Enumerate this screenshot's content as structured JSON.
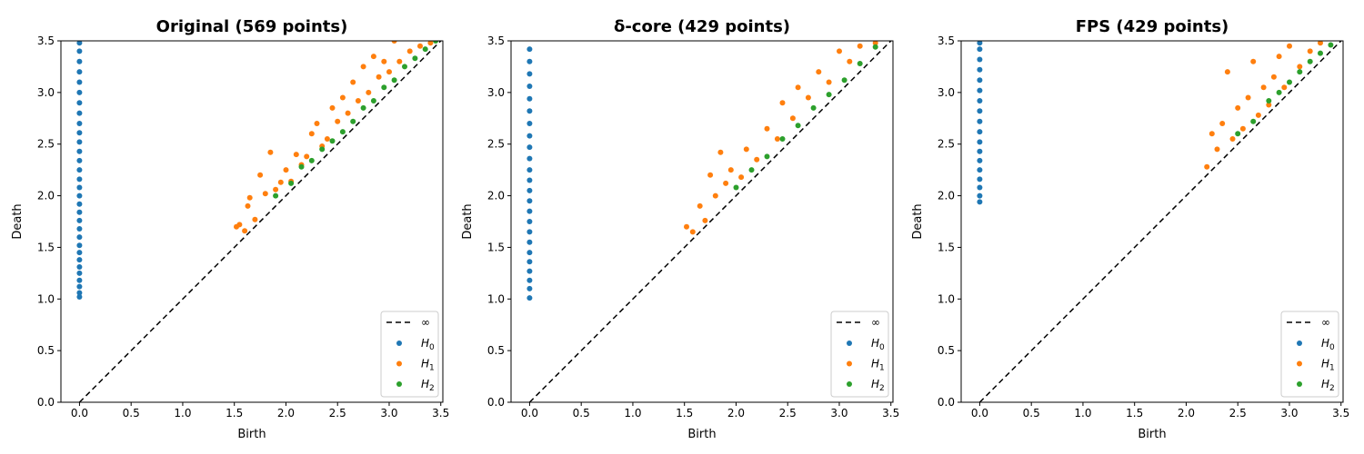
{
  "chart_data": [
    {
      "type": "scatter",
      "title": "Original (569 points)",
      "xlabel": "Birth",
      "ylabel": "Death",
      "xlim": [
        -0.18,
        3.52
      ],
      "ylim": [
        0.0,
        3.5
      ],
      "xticks": [
        0.0,
        0.5,
        1.0,
        1.5,
        2.0,
        2.5,
        3.0,
        3.5
      ],
      "yticks": [
        0.0,
        0.5,
        1.0,
        1.5,
        2.0,
        2.5,
        3.0,
        3.5
      ],
      "tick_labels": [
        "0.0",
        "0.5",
        "1.0",
        "1.5",
        "2.0",
        "2.5",
        "3.0",
        "3.5"
      ],
      "diagonal_label": "∞",
      "legend_position": "lower-right",
      "series": [
        {
          "name": "H0",
          "sub": "0",
          "color": "#1f77b4",
          "points": [
            [
              0,
              1.02
            ],
            [
              0,
              1.06
            ],
            [
              0,
              1.12
            ],
            [
              0,
              1.18
            ],
            [
              0,
              1.25
            ],
            [
              0,
              1.31
            ],
            [
              0,
              1.38
            ],
            [
              0,
              1.45
            ],
            [
              0,
              1.52
            ],
            [
              0,
              1.6
            ],
            [
              0,
              1.68
            ],
            [
              0,
              1.76
            ],
            [
              0,
              1.84
            ],
            [
              0,
              1.92
            ],
            [
              0,
              2.0
            ],
            [
              0,
              2.08
            ],
            [
              0,
              2.16
            ],
            [
              0,
              2.25
            ],
            [
              0,
              2.34
            ],
            [
              0,
              2.43
            ],
            [
              0,
              2.52
            ],
            [
              0,
              2.61
            ],
            [
              0,
              2.7
            ],
            [
              0,
              2.8
            ],
            [
              0,
              2.9
            ],
            [
              0,
              3.0
            ],
            [
              0,
              3.1
            ],
            [
              0,
              3.2
            ],
            [
              0,
              3.3
            ],
            [
              0,
              3.4
            ],
            [
              0,
              3.48
            ]
          ]
        },
        {
          "name": "H1",
          "sub": "1",
          "color": "#ff7f0e",
          "points": [
            [
              1.52,
              1.7
            ],
            [
              1.55,
              1.72
            ],
            [
              1.6,
              1.66
            ],
            [
              1.63,
              1.9
            ],
            [
              1.65,
              1.98
            ],
            [
              1.7,
              1.77
            ],
            [
              1.75,
              2.2
            ],
            [
              1.8,
              2.02
            ],
            [
              1.85,
              2.42
            ],
            [
              1.9,
              2.06
            ],
            [
              1.95,
              2.13
            ],
            [
              2.0,
              2.25
            ],
            [
              2.05,
              2.14
            ],
            [
              2.1,
              2.4
            ],
            [
              2.15,
              2.3
            ],
            [
              2.2,
              2.38
            ],
            [
              2.25,
              2.6
            ],
            [
              2.3,
              2.7
            ],
            [
              2.35,
              2.48
            ],
            [
              2.4,
              2.55
            ],
            [
              2.45,
              2.85
            ],
            [
              2.5,
              2.72
            ],
            [
              2.55,
              2.95
            ],
            [
              2.6,
              2.8
            ],
            [
              2.65,
              3.1
            ],
            [
              2.7,
              2.92
            ],
            [
              2.75,
              3.25
            ],
            [
              2.8,
              3.0
            ],
            [
              2.85,
              3.35
            ],
            [
              2.9,
              3.15
            ],
            [
              2.95,
              3.3
            ],
            [
              3.0,
              3.2
            ],
            [
              3.05,
              3.5
            ],
            [
              3.1,
              3.3
            ],
            [
              3.2,
              3.4
            ],
            [
              3.3,
              3.45
            ],
            [
              3.4,
              3.48
            ]
          ]
        },
        {
          "name": "H2",
          "sub": "2",
          "color": "#2ca02c",
          "points": [
            [
              1.9,
              2.0
            ],
            [
              2.05,
              2.12
            ],
            [
              2.15,
              2.28
            ],
            [
              2.25,
              2.34
            ],
            [
              2.35,
              2.45
            ],
            [
              2.45,
              2.53
            ],
            [
              2.55,
              2.62
            ],
            [
              2.65,
              2.72
            ],
            [
              2.75,
              2.85
            ],
            [
              2.85,
              2.92
            ],
            [
              2.95,
              3.05
            ],
            [
              3.05,
              3.12
            ],
            [
              3.15,
              3.25
            ],
            [
              3.25,
              3.33
            ],
            [
              3.35,
              3.42
            ],
            [
              3.45,
              3.5
            ]
          ]
        }
      ]
    },
    {
      "type": "scatter",
      "title": "δ-core (429 points)",
      "xlabel": "Birth",
      "ylabel": "Death",
      "xlim": [
        -0.18,
        3.52
      ],
      "ylim": [
        0.0,
        3.5
      ],
      "xticks": [
        0.0,
        0.5,
        1.0,
        1.5,
        2.0,
        2.5,
        3.0,
        3.5
      ],
      "yticks": [
        0.0,
        0.5,
        1.0,
        1.5,
        2.0,
        2.5,
        3.0,
        3.5
      ],
      "tick_labels": [
        "0.0",
        "0.5",
        "1.0",
        "1.5",
        "2.0",
        "2.5",
        "3.0",
        "3.5"
      ],
      "diagonal_label": "∞",
      "legend_position": "lower-right",
      "series": [
        {
          "name": "H0",
          "sub": "0",
          "color": "#1f77b4",
          "points": [
            [
              0,
              1.01
            ],
            [
              0,
              1.1
            ],
            [
              0,
              1.18
            ],
            [
              0,
              1.27
            ],
            [
              0,
              1.36
            ],
            [
              0,
              1.45
            ],
            [
              0,
              1.55
            ],
            [
              0,
              1.65
            ],
            [
              0,
              1.75
            ],
            [
              0,
              1.85
            ],
            [
              0,
              1.95
            ],
            [
              0,
              2.05
            ],
            [
              0,
              2.15
            ],
            [
              0,
              2.25
            ],
            [
              0,
              2.36
            ],
            [
              0,
              2.47
            ],
            [
              0,
              2.58
            ],
            [
              0,
              2.7
            ],
            [
              0,
              2.82
            ],
            [
              0,
              2.94
            ],
            [
              0,
              3.06
            ],
            [
              0,
              3.18
            ],
            [
              0,
              3.3
            ],
            [
              0,
              3.42
            ]
          ]
        },
        {
          "name": "H1",
          "sub": "1",
          "color": "#ff7f0e",
          "points": [
            [
              1.52,
              1.7
            ],
            [
              1.58,
              1.65
            ],
            [
              1.65,
              1.9
            ],
            [
              1.7,
              1.76
            ],
            [
              1.75,
              2.2
            ],
            [
              1.8,
              2.0
            ],
            [
              1.85,
              2.42
            ],
            [
              1.9,
              2.12
            ],
            [
              1.95,
              2.25
            ],
            [
              2.05,
              2.18
            ],
            [
              2.1,
              2.45
            ],
            [
              2.2,
              2.35
            ],
            [
              2.3,
              2.65
            ],
            [
              2.4,
              2.55
            ],
            [
              2.45,
              2.9
            ],
            [
              2.55,
              2.75
            ],
            [
              2.6,
              3.05
            ],
            [
              2.7,
              2.95
            ],
            [
              2.8,
              3.2
            ],
            [
              2.9,
              3.1
            ],
            [
              3.0,
              3.4
            ],
            [
              3.1,
              3.3
            ],
            [
              3.2,
              3.45
            ],
            [
              3.35,
              3.48
            ]
          ]
        },
        {
          "name": "H2",
          "sub": "2",
          "color": "#2ca02c",
          "points": [
            [
              2.0,
              2.08
            ],
            [
              2.15,
              2.25
            ],
            [
              2.3,
              2.38
            ],
            [
              2.45,
              2.55
            ],
            [
              2.6,
              2.68
            ],
            [
              2.75,
              2.85
            ],
            [
              2.9,
              2.98
            ],
            [
              3.05,
              3.12
            ],
            [
              3.2,
              3.28
            ],
            [
              3.35,
              3.44
            ]
          ]
        }
      ]
    },
    {
      "type": "scatter",
      "title": "FPS (429 points)",
      "xlabel": "Birth",
      "ylabel": "Death",
      "xlim": [
        -0.18,
        3.52
      ],
      "ylim": [
        0.0,
        3.5
      ],
      "xticks": [
        0.0,
        0.5,
        1.0,
        1.5,
        2.0,
        2.5,
        3.0,
        3.5
      ],
      "yticks": [
        0.0,
        0.5,
        1.0,
        1.5,
        2.0,
        2.5,
        3.0,
        3.5
      ],
      "tick_labels": [
        "0.0",
        "0.5",
        "1.0",
        "1.5",
        "2.0",
        "2.5",
        "3.0",
        "3.5"
      ],
      "diagonal_label": "∞",
      "legend_position": "lower-right",
      "series": [
        {
          "name": "H0",
          "sub": "0",
          "color": "#1f77b4",
          "points": [
            [
              0,
              1.94
            ],
            [
              0,
              2.0
            ],
            [
              0,
              2.08
            ],
            [
              0,
              2.16
            ],
            [
              0,
              2.25
            ],
            [
              0,
              2.34
            ],
            [
              0,
              2.43
            ],
            [
              0,
              2.52
            ],
            [
              0,
              2.62
            ],
            [
              0,
              2.72
            ],
            [
              0,
              2.82
            ],
            [
              0,
              2.92
            ],
            [
              0,
              3.02
            ],
            [
              0,
              3.12
            ],
            [
              0,
              3.22
            ],
            [
              0,
              3.32
            ],
            [
              0,
              3.42
            ],
            [
              0,
              3.48
            ]
          ]
        },
        {
          "name": "H1",
          "sub": "1",
          "color": "#ff7f0e",
          "points": [
            [
              2.2,
              2.28
            ],
            [
              2.25,
              2.6
            ],
            [
              2.3,
              2.45
            ],
            [
              2.35,
              2.7
            ],
            [
              2.4,
              3.2
            ],
            [
              2.45,
              2.55
            ],
            [
              2.5,
              2.85
            ],
            [
              2.55,
              2.65
            ],
            [
              2.6,
              2.95
            ],
            [
              2.65,
              3.3
            ],
            [
              2.7,
              2.78
            ],
            [
              2.75,
              3.05
            ],
            [
              2.8,
              2.88
            ],
            [
              2.85,
              3.15
            ],
            [
              2.9,
              3.35
            ],
            [
              2.95,
              3.05
            ],
            [
              3.0,
              3.45
            ],
            [
              3.1,
              3.25
            ],
            [
              3.2,
              3.4
            ],
            [
              3.3,
              3.48
            ]
          ]
        },
        {
          "name": "H2",
          "sub": "2",
          "color": "#2ca02c",
          "points": [
            [
              2.5,
              2.6
            ],
            [
              2.65,
              2.72
            ],
            [
              2.8,
              2.92
            ],
            [
              2.9,
              3.0
            ],
            [
              3.0,
              3.1
            ],
            [
              3.1,
              3.2
            ],
            [
              3.2,
              3.3
            ],
            [
              3.3,
              3.38
            ],
            [
              3.4,
              3.46
            ]
          ]
        }
      ]
    }
  ]
}
